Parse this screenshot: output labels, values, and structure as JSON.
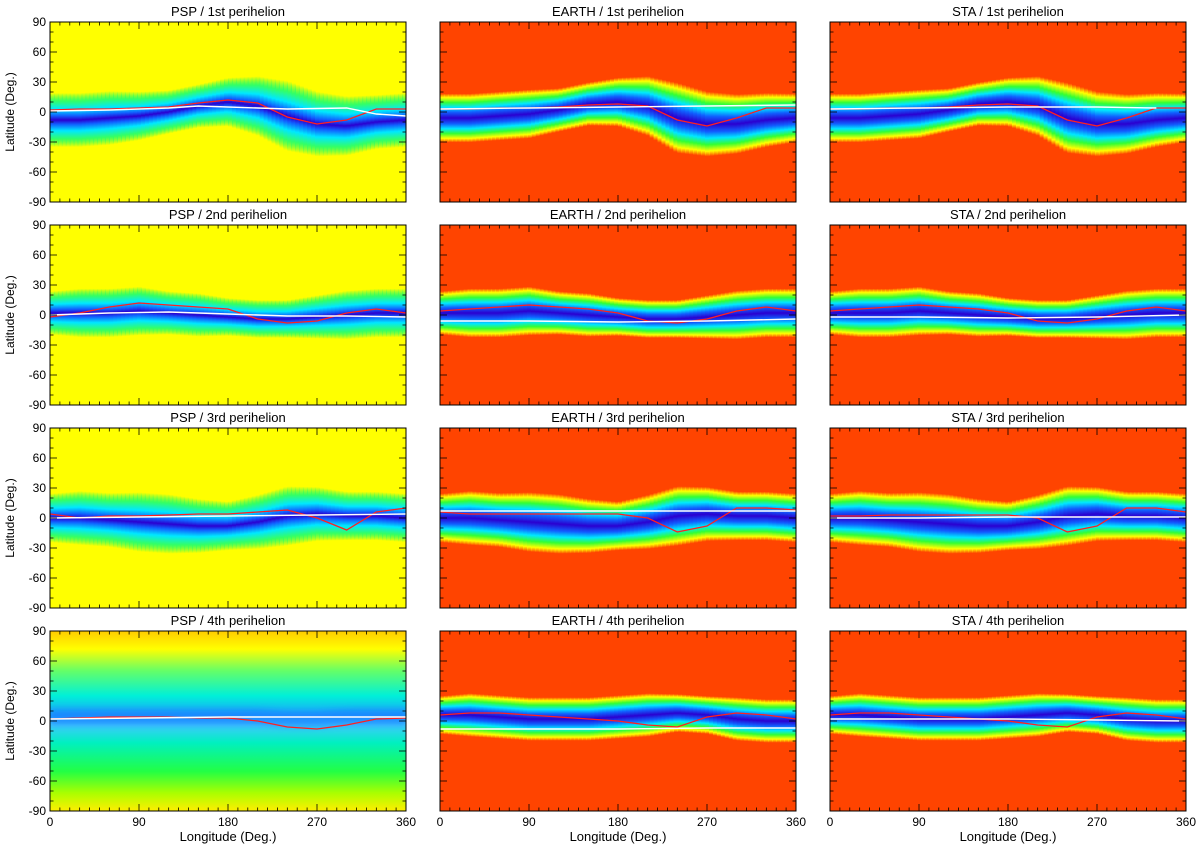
{
  "colors": {
    "yellow_bg": "#ffff00",
    "red_bg": "#ff4400",
    "hcs_line": "#ff2020",
    "trajectory_line": "#ffffff"
  },
  "chart_data": [
    {
      "type": "heatmap",
      "title": "PSP / 1st perihelion",
      "xlabel": "",
      "ylabel": "Latitude (Deg.)",
      "xlim": [
        0,
        360
      ],
      "ylim": [
        -90,
        90
      ],
      "xticks": [
        "",
        "",
        "",
        "",
        ""
      ],
      "yticks": [
        "90",
        "60",
        "30",
        "0",
        "-30",
        "-60",
        "-90"
      ],
      "background": "yellow",
      "band": {
        "center": [
          -8,
          -8,
          -6,
          -4,
          0,
          6,
          10,
          6,
          -4,
          -12,
          -14,
          -10,
          -8
        ],
        "half_width": [
          20,
          20,
          20,
          18,
          16,
          16,
          18,
          22,
          26,
          24,
          22,
          20,
          20
        ]
      },
      "hcs": {
        "x": [
          0,
          30,
          60,
          90,
          120,
          150,
          180,
          210,
          240,
          270,
          300,
          330,
          360
        ],
        "y": [
          2,
          3,
          3,
          4,
          5,
          9,
          12,
          9,
          -5,
          -12,
          -8,
          3,
          3
        ]
      },
      "trajectory": {
        "x": [
          0,
          60,
          120,
          150,
          240,
          300,
          330,
          360
        ],
        "y": [
          1,
          2,
          4,
          6,
          3,
          4,
          -2,
          -4
        ]
      }
    },
    {
      "type": "heatmap",
      "title": "EARTH / 1st perihelion",
      "xlabel": "",
      "ylabel": "",
      "xlim": [
        0,
        360
      ],
      "ylim": [
        -90,
        90
      ],
      "xticks": [
        "",
        "",
        "",
        "",
        ""
      ],
      "yticks": [],
      "background": "red",
      "band": {
        "center": [
          -6,
          -6,
          -4,
          -2,
          2,
          8,
          10,
          6,
          -6,
          -12,
          -12,
          -8,
          -6
        ],
        "half_width": [
          18,
          18,
          18,
          18,
          16,
          16,
          18,
          22,
          26,
          24,
          22,
          20,
          18
        ]
      },
      "hcs": {
        "x": [
          0,
          30,
          60,
          90,
          120,
          150,
          180,
          210,
          240,
          270,
          300,
          330,
          360
        ],
        "y": [
          3,
          3,
          4,
          4,
          5,
          7,
          8,
          6,
          -8,
          -14,
          -6,
          4,
          4
        ]
      },
      "trajectory": {
        "x": [
          0,
          90,
          180,
          270,
          360
        ],
        "y": [
          3,
          4,
          5,
          6,
          7
        ]
      }
    },
    {
      "type": "heatmap",
      "title": "STA / 1st perihelion",
      "xlabel": "",
      "ylabel": "",
      "xlim": [
        0,
        360
      ],
      "ylim": [
        -90,
        90
      ],
      "xticks": [
        "",
        "",
        "",
        "",
        ""
      ],
      "yticks": [],
      "background": "red",
      "band": {
        "center": [
          -6,
          -6,
          -4,
          -2,
          2,
          8,
          10,
          6,
          -6,
          -12,
          -12,
          -8,
          -6
        ],
        "half_width": [
          18,
          18,
          18,
          18,
          16,
          16,
          18,
          22,
          26,
          24,
          22,
          20,
          18
        ]
      },
      "hcs": {
        "x": [
          0,
          30,
          60,
          90,
          120,
          150,
          180,
          210,
          240,
          270,
          300,
          330,
          360
        ],
        "y": [
          3,
          3,
          4,
          4,
          5,
          7,
          8,
          6,
          -8,
          -14,
          -6,
          4,
          4
        ]
      },
      "trajectory": {
        "x": [
          0,
          90,
          180,
          270,
          330
        ],
        "y": [
          3,
          4,
          5,
          5,
          4
        ]
      }
    },
    {
      "type": "heatmap",
      "title": "PSP / 2nd perihelion",
      "xlabel": "",
      "ylabel": "Latitude (Deg.)",
      "xlim": [
        0,
        360
      ],
      "ylim": [
        -90,
        90
      ],
      "xticks": [
        "",
        "",
        "",
        "",
        ""
      ],
      "yticks": [
        "90",
        "60",
        "30",
        "0",
        "-30",
        "-60",
        "-90"
      ],
      "background": "yellow",
      "band": {
        "center": [
          2,
          2,
          2,
          4,
          2,
          0,
          -2,
          -4,
          -4,
          -2,
          0,
          2,
          2
        ],
        "half_width": [
          16,
          18,
          18,
          18,
          16,
          16,
          14,
          14,
          14,
          16,
          18,
          18,
          18
        ]
      },
      "hcs": {
        "x": [
          0,
          30,
          60,
          90,
          120,
          150,
          180,
          210,
          240,
          270,
          300,
          330,
          360
        ],
        "y": [
          -2,
          2,
          8,
          12,
          10,
          8,
          6,
          -4,
          -8,
          -6,
          2,
          6,
          2
        ]
      },
      "trajectory": {
        "x": [
          0,
          60,
          120,
          180,
          240,
          300,
          360
        ],
        "y": [
          0,
          2,
          3,
          1,
          -1,
          -1,
          -2
        ]
      }
    },
    {
      "type": "heatmap",
      "title": "EARTH / 2nd perihelion",
      "xlabel": "",
      "ylabel": "",
      "xlim": [
        0,
        360
      ],
      "ylim": [
        -90,
        90
      ],
      "xticks": [
        "",
        "",
        "",
        "",
        ""
      ],
      "yticks": [],
      "background": "red",
      "band": {
        "center": [
          2,
          2,
          2,
          4,
          2,
          0,
          -2,
          -4,
          -4,
          -2,
          0,
          2,
          2
        ],
        "half_width": [
          16,
          18,
          18,
          18,
          16,
          16,
          14,
          14,
          14,
          16,
          18,
          18,
          18
        ]
      },
      "hcs": {
        "x": [
          0,
          30,
          60,
          90,
          120,
          150,
          180,
          210,
          240,
          270,
          300,
          330,
          360
        ],
        "y": [
          4,
          6,
          8,
          10,
          8,
          6,
          2,
          -6,
          -8,
          -4,
          4,
          8,
          4
        ]
      },
      "trajectory": {
        "x": [
          0,
          90,
          180,
          270,
          360
        ],
        "y": [
          -6,
          -6,
          -7,
          -6,
          -4
        ]
      }
    },
    {
      "type": "heatmap",
      "title": "STA / 2nd perihelion",
      "xlabel": "",
      "ylabel": "",
      "xlim": [
        0,
        360
      ],
      "ylim": [
        -90,
        90
      ],
      "xticks": [
        "",
        "",
        "",
        "",
        ""
      ],
      "yticks": [],
      "background": "red",
      "band": {
        "center": [
          2,
          2,
          2,
          4,
          2,
          0,
          -2,
          -4,
          -4,
          -2,
          0,
          2,
          2
        ],
        "half_width": [
          16,
          18,
          18,
          18,
          16,
          16,
          14,
          14,
          14,
          16,
          18,
          18,
          18
        ]
      },
      "hcs": {
        "x": [
          0,
          30,
          60,
          90,
          120,
          150,
          180,
          210,
          240,
          270,
          300,
          330,
          360
        ],
        "y": [
          4,
          6,
          8,
          10,
          8,
          6,
          2,
          -6,
          -8,
          -4,
          4,
          8,
          4
        ]
      },
      "trajectory": {
        "x": [
          0,
          90,
          180,
          270,
          360
        ],
        "y": [
          -2,
          -2,
          -3,
          -2,
          0
        ]
      }
    },
    {
      "type": "heatmap",
      "title": "PSP / 3rd perihelion",
      "xlabel": "",
      "ylabel": "Latitude (Deg.)",
      "xlim": [
        0,
        360
      ],
      "ylim": [
        -90,
        90
      ],
      "xticks": [
        "",
        "",
        "",
        "",
        ""
      ],
      "yticks": [
        "90",
        "60",
        "30",
        "0",
        "-30",
        "-60",
        "-90"
      ],
      "background": "yellow",
      "band": {
        "center": [
          0,
          0,
          -2,
          -4,
          -6,
          -8,
          -8,
          -4,
          2,
          4,
          2,
          2,
          0
        ],
        "half_width": [
          18,
          20,
          20,
          22,
          22,
          20,
          18,
          20,
          22,
          20,
          18,
          18,
          18
        ]
      },
      "hcs": {
        "x": [
          0,
          30,
          60,
          90,
          120,
          150,
          180,
          210,
          240,
          270,
          300,
          330,
          360
        ],
        "y": [
          4,
          0,
          2,
          2,
          3,
          4,
          4,
          6,
          8,
          0,
          -12,
          6,
          10
        ]
      },
      "trajectory": {
        "x": [
          0,
          90,
          180,
          270,
          360
        ],
        "y": [
          0,
          1,
          2,
          3,
          4
        ]
      }
    },
    {
      "type": "heatmap",
      "title": "EARTH / 3rd perihelion",
      "xlabel": "",
      "ylabel": "",
      "xlim": [
        0,
        360
      ],
      "ylim": [
        -90,
        90
      ],
      "xticks": [
        "",
        "",
        "",
        "",
        ""
      ],
      "yticks": [],
      "background": "red",
      "band": {
        "center": [
          0,
          0,
          -2,
          -4,
          -6,
          -8,
          -8,
          -4,
          2,
          4,
          2,
          2,
          0
        ],
        "half_width": [
          18,
          20,
          20,
          22,
          22,
          20,
          18,
          20,
          22,
          20,
          18,
          18,
          18
        ]
      },
      "hcs": {
        "x": [
          0,
          30,
          60,
          90,
          120,
          150,
          180,
          210,
          240,
          270,
          300,
          330,
          360
        ],
        "y": [
          6,
          4,
          4,
          4,
          4,
          4,
          4,
          0,
          -14,
          -8,
          10,
          10,
          8
        ]
      },
      "trajectory": {
        "x": [
          0,
          90,
          180,
          270,
          360
        ],
        "y": [
          7,
          7,
          7,
          7,
          7
        ]
      }
    },
    {
      "type": "heatmap",
      "title": "STA / 3rd perihelion",
      "xlabel": "",
      "ylabel": "",
      "xlim": [
        0,
        360
      ],
      "ylim": [
        -90,
        90
      ],
      "xticks": [
        "",
        "",
        "",
        "",
        ""
      ],
      "yticks": [],
      "background": "red",
      "band": {
        "center": [
          0,
          0,
          -2,
          -4,
          -6,
          -8,
          -8,
          -4,
          2,
          4,
          2,
          2,
          0
        ],
        "half_width": [
          18,
          20,
          20,
          22,
          22,
          20,
          18,
          20,
          22,
          20,
          18,
          18,
          18
        ]
      },
      "hcs": {
        "x": [
          0,
          30,
          60,
          90,
          120,
          150,
          180,
          210,
          240,
          270,
          300,
          330,
          360
        ],
        "y": [
          2,
          2,
          3,
          3,
          3,
          3,
          3,
          0,
          -14,
          -8,
          10,
          10,
          6
        ]
      },
      "trajectory": {
        "x": [
          0,
          90,
          180,
          270,
          360
        ],
        "y": [
          0,
          0,
          1,
          1,
          1
        ]
      }
    },
    {
      "type": "heatmap",
      "title": "PSP / 4th perihelion",
      "xlabel": "Longitude (Deg.)",
      "ylabel": "Latitude (Deg.)",
      "xlim": [
        0,
        360
      ],
      "ylim": [
        -90,
        90
      ],
      "xticks": [
        "0",
        "90",
        "180",
        "270",
        "360"
      ],
      "yticks": [
        "90",
        "60",
        "30",
        "0",
        "-30",
        "-60",
        "-90"
      ],
      "background": "broad",
      "band": {
        "center": [
          4,
          4,
          4,
          4,
          4,
          4,
          4,
          4,
          2,
          2,
          4,
          4,
          4
        ],
        "half_width": [
          22,
          22,
          24,
          24,
          22,
          22,
          22,
          24,
          24,
          22,
          22,
          22,
          22
        ]
      },
      "hcs": {
        "x": [
          0,
          30,
          60,
          90,
          120,
          150,
          180,
          210,
          240,
          270,
          300,
          330,
          360
        ],
        "y": [
          2,
          3,
          4,
          4,
          4,
          3,
          3,
          0,
          -6,
          -8,
          -4,
          2,
          3
        ]
      },
      "trajectory": {
        "x": [
          0,
          90,
          180,
          270,
          360
        ],
        "y": [
          2,
          3,
          4,
          4,
          4
        ]
      }
    },
    {
      "type": "heatmap",
      "title": "EARTH / 4th perihelion",
      "xlabel": "Longitude (Deg.)",
      "ylabel": "",
      "xlim": [
        0,
        360
      ],
      "ylim": [
        -90,
        90
      ],
      "xticks": [
        "0",
        "90",
        "180",
        "270",
        "360"
      ],
      "yticks": [],
      "background": "red",
      "band": {
        "center": [
          6,
          6,
          4,
          2,
          2,
          2,
          4,
          6,
          8,
          6,
          2,
          0,
          0
        ],
        "half_width": [
          14,
          16,
          16,
          16,
          16,
          16,
          16,
          16,
          14,
          14,
          16,
          16,
          16
        ]
      },
      "hcs": {
        "x": [
          0,
          30,
          60,
          90,
          120,
          150,
          180,
          210,
          240,
          270,
          300,
          330,
          360
        ],
        "y": [
          6,
          8,
          8,
          6,
          4,
          2,
          0,
          -4,
          -6,
          4,
          8,
          6,
          2
        ]
      },
      "trajectory": {
        "x": [
          0,
          90,
          180,
          270,
          360
        ],
        "y": [
          -8,
          -8,
          -8,
          -7,
          -7
        ]
      }
    },
    {
      "type": "heatmap",
      "title": "STA / 4th perihelion",
      "xlabel": "Longitude (Deg.)",
      "ylabel": "",
      "xlim": [
        0,
        360
      ],
      "ylim": [
        -90,
        90
      ],
      "xticks": [
        "0",
        "90",
        "180",
        "270",
        "360"
      ],
      "yticks": [],
      "background": "red",
      "band": {
        "center": [
          6,
          6,
          4,
          2,
          2,
          2,
          4,
          6,
          8,
          6,
          2,
          0,
          0
        ],
        "half_width": [
          14,
          16,
          16,
          16,
          16,
          16,
          16,
          16,
          14,
          14,
          16,
          16,
          16
        ]
      },
      "hcs": {
        "x": [
          0,
          30,
          60,
          90,
          120,
          150,
          180,
          210,
          240,
          270,
          300,
          330,
          360
        ],
        "y": [
          6,
          8,
          8,
          6,
          4,
          2,
          0,
          -4,
          -6,
          4,
          8,
          6,
          2
        ]
      },
      "trajectory": {
        "x": [
          0,
          90,
          180,
          270,
          360
        ],
        "y": [
          2,
          2,
          2,
          1,
          0
        ]
      }
    }
  ]
}
